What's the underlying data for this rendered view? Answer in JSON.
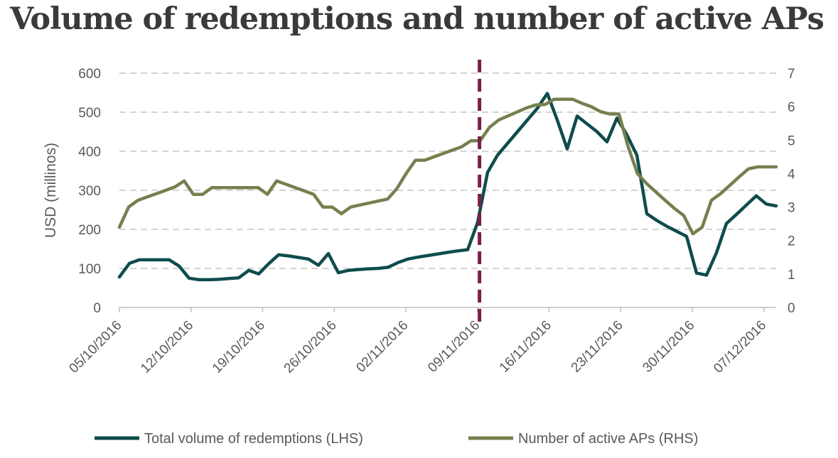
{
  "chart_data": {
    "type": "line",
    "title": "Volume of redemptions and number of active APs",
    "xlabel": "",
    "ylabel": "USD (millinos)",
    "y2label": "",
    "ylim": [
      0,
      600
    ],
    "y2lim": [
      0,
      7
    ],
    "yticks": [
      "0",
      "100",
      "200",
      "300",
      "400",
      "500",
      "600"
    ],
    "y2ticks": [
      "0",
      "1",
      "2",
      "3",
      "4",
      "5",
      "6",
      "7"
    ],
    "grid": "horizontal-dashed",
    "x_start": "05/10/2016",
    "x_end": "08/12/2016",
    "xticks": [
      "05/10/2016",
      "12/10/2016",
      "19/10/2016",
      "26/10/2016",
      "02/11/2016",
      "09/11/2016",
      "16/11/2016",
      "23/11/2016",
      "30/11/2016",
      "07/12/2016"
    ],
    "event_marker": {
      "day_offset": 35.2,
      "style": "dashed",
      "color": "#7a1f4a"
    },
    "legend_position": "bottom",
    "series": [
      {
        "name": "Total volume of redemptions (LHS)",
        "axis": "left",
        "color": "#0f4c4c",
        "points": [
          [
            0,
            78
          ],
          [
            1,
            113
          ],
          [
            2,
            122
          ],
          [
            3,
            122
          ],
          [
            4,
            122
          ],
          [
            5,
            122
          ],
          [
            6,
            106
          ],
          [
            7,
            75
          ],
          [
            8,
            71
          ],
          [
            9,
            71
          ],
          [
            10,
            72
          ],
          [
            11,
            74
          ],
          [
            12,
            76
          ],
          [
            13,
            95
          ],
          [
            14,
            86
          ],
          [
            15,
            112
          ],
          [
            16,
            135
          ],
          [
            17,
            132
          ],
          [
            18,
            128
          ],
          [
            19,
            124
          ],
          [
            20,
            108
          ],
          [
            21,
            138
          ],
          [
            22,
            89
          ],
          [
            23,
            95
          ],
          [
            24,
            97
          ],
          [
            25,
            99
          ],
          [
            26,
            100
          ],
          [
            27,
            103
          ],
          [
            28,
            115
          ],
          [
            29,
            124
          ],
          [
            30,
            129
          ],
          [
            31,
            133
          ],
          [
            32,
            137
          ],
          [
            33,
            141
          ],
          [
            34,
            145
          ],
          [
            35,
            148
          ],
          [
            36,
            218
          ],
          [
            37,
            346
          ],
          [
            38,
            390
          ],
          [
            39,
            420
          ],
          [
            40,
            450
          ],
          [
            41,
            480
          ],
          [
            42,
            510
          ],
          [
            43,
            548
          ],
          [
            44,
            480
          ],
          [
            45,
            406
          ],
          [
            46,
            490
          ],
          [
            47,
            470
          ],
          [
            48,
            450
          ],
          [
            49,
            424
          ],
          [
            50,
            485
          ],
          [
            51,
            442
          ],
          [
            52,
            390
          ],
          [
            53,
            240
          ],
          [
            54,
            223
          ],
          [
            55,
            208
          ],
          [
            56,
            195
          ],
          [
            57,
            182
          ],
          [
            58,
            88
          ],
          [
            59,
            83
          ],
          [
            60,
            140
          ],
          [
            61,
            215
          ],
          [
            62,
            238
          ],
          [
            63,
            262
          ],
          [
            64,
            286
          ],
          [
            65,
            265
          ],
          [
            66,
            260
          ]
        ]
      },
      {
        "name": "Number of active APs (RHS)",
        "axis": "right",
        "color": "#75804e",
        "points": [
          [
            0,
            2.4
          ],
          [
            1,
            3.0
          ],
          [
            2,
            3.2
          ],
          [
            3,
            3.3
          ],
          [
            4,
            3.4
          ],
          [
            5,
            3.5
          ],
          [
            6,
            3.6
          ],
          [
            7,
            3.78
          ],
          [
            8,
            3.38
          ],
          [
            9,
            3.38
          ],
          [
            10,
            3.58
          ],
          [
            11,
            3.58
          ],
          [
            12,
            3.58
          ],
          [
            13,
            3.58
          ],
          [
            14,
            3.58
          ],
          [
            15,
            3.58
          ],
          [
            16,
            3.38
          ],
          [
            17,
            3.78
          ],
          [
            18,
            3.68
          ],
          [
            19,
            3.58
          ],
          [
            20,
            3.48
          ],
          [
            21,
            3.38
          ],
          [
            22,
            3.0
          ],
          [
            23,
            3.0
          ],
          [
            24,
            2.8
          ],
          [
            25,
            3.0
          ],
          [
            26,
            3.06
          ],
          [
            27,
            3.12
          ],
          [
            28,
            3.18
          ],
          [
            29,
            3.24
          ],
          [
            30,
            3.55
          ],
          [
            31,
            4.0
          ],
          [
            32,
            4.4
          ],
          [
            33,
            4.4
          ],
          [
            34,
            4.5
          ],
          [
            35,
            4.6
          ],
          [
            36,
            4.7
          ],
          [
            37,
            4.8
          ],
          [
            38,
            4.98
          ],
          [
            39,
            4.98
          ],
          [
            40,
            5.38
          ],
          [
            41,
            5.6
          ],
          [
            42,
            5.72
          ],
          [
            43,
            5.84
          ],
          [
            44,
            5.96
          ],
          [
            45,
            6.05
          ],
          [
            46,
            6.06
          ],
          [
            47,
            6.22
          ],
          [
            48,
            6.22
          ],
          [
            49,
            6.22
          ],
          [
            50,
            6.1
          ],
          [
            51,
            6.0
          ],
          [
            52,
            5.85
          ],
          [
            53,
            5.78
          ],
          [
            54,
            5.78
          ],
          [
            55,
            4.8
          ],
          [
            56,
            4.0
          ],
          [
            57,
            3.7
          ],
          [
            58,
            3.45
          ],
          [
            59,
            3.2
          ],
          [
            60,
            2.96
          ],
          [
            61,
            2.75
          ],
          [
            62,
            2.2
          ],
          [
            63,
            2.4
          ],
          [
            64,
            3.2
          ],
          [
            65,
            3.4
          ],
          [
            66,
            3.65
          ],
          [
            67,
            3.9
          ],
          [
            68,
            4.14
          ],
          [
            69,
            4.2
          ],
          [
            70,
            4.2
          ],
          [
            71,
            4.2
          ]
        ]
      }
    ]
  }
}
